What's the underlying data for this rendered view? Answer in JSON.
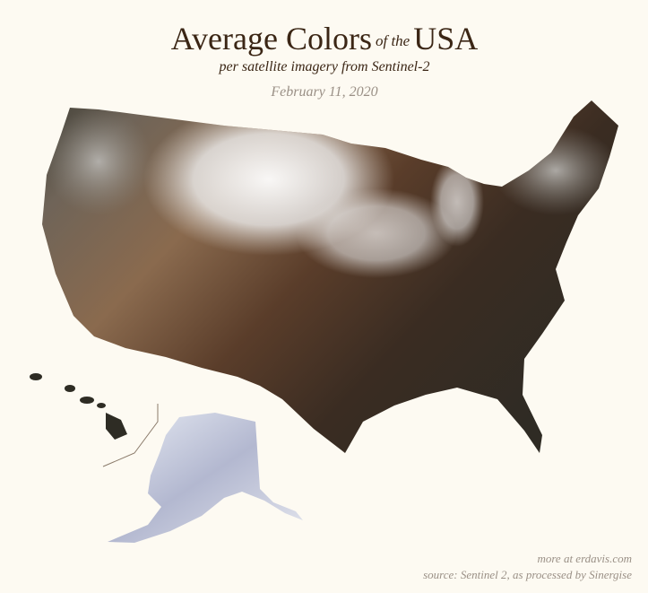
{
  "header": {
    "title_part1": "Average Colors",
    "title_connector": "of the",
    "title_part2": "USA",
    "subtitle": "per satellite imagery from Sentinel-2",
    "date": "February 11, 2020"
  },
  "footer": {
    "link": "more at erdavis.com",
    "source": "source: Sentinel 2, as processed by Sinergise"
  }
}
